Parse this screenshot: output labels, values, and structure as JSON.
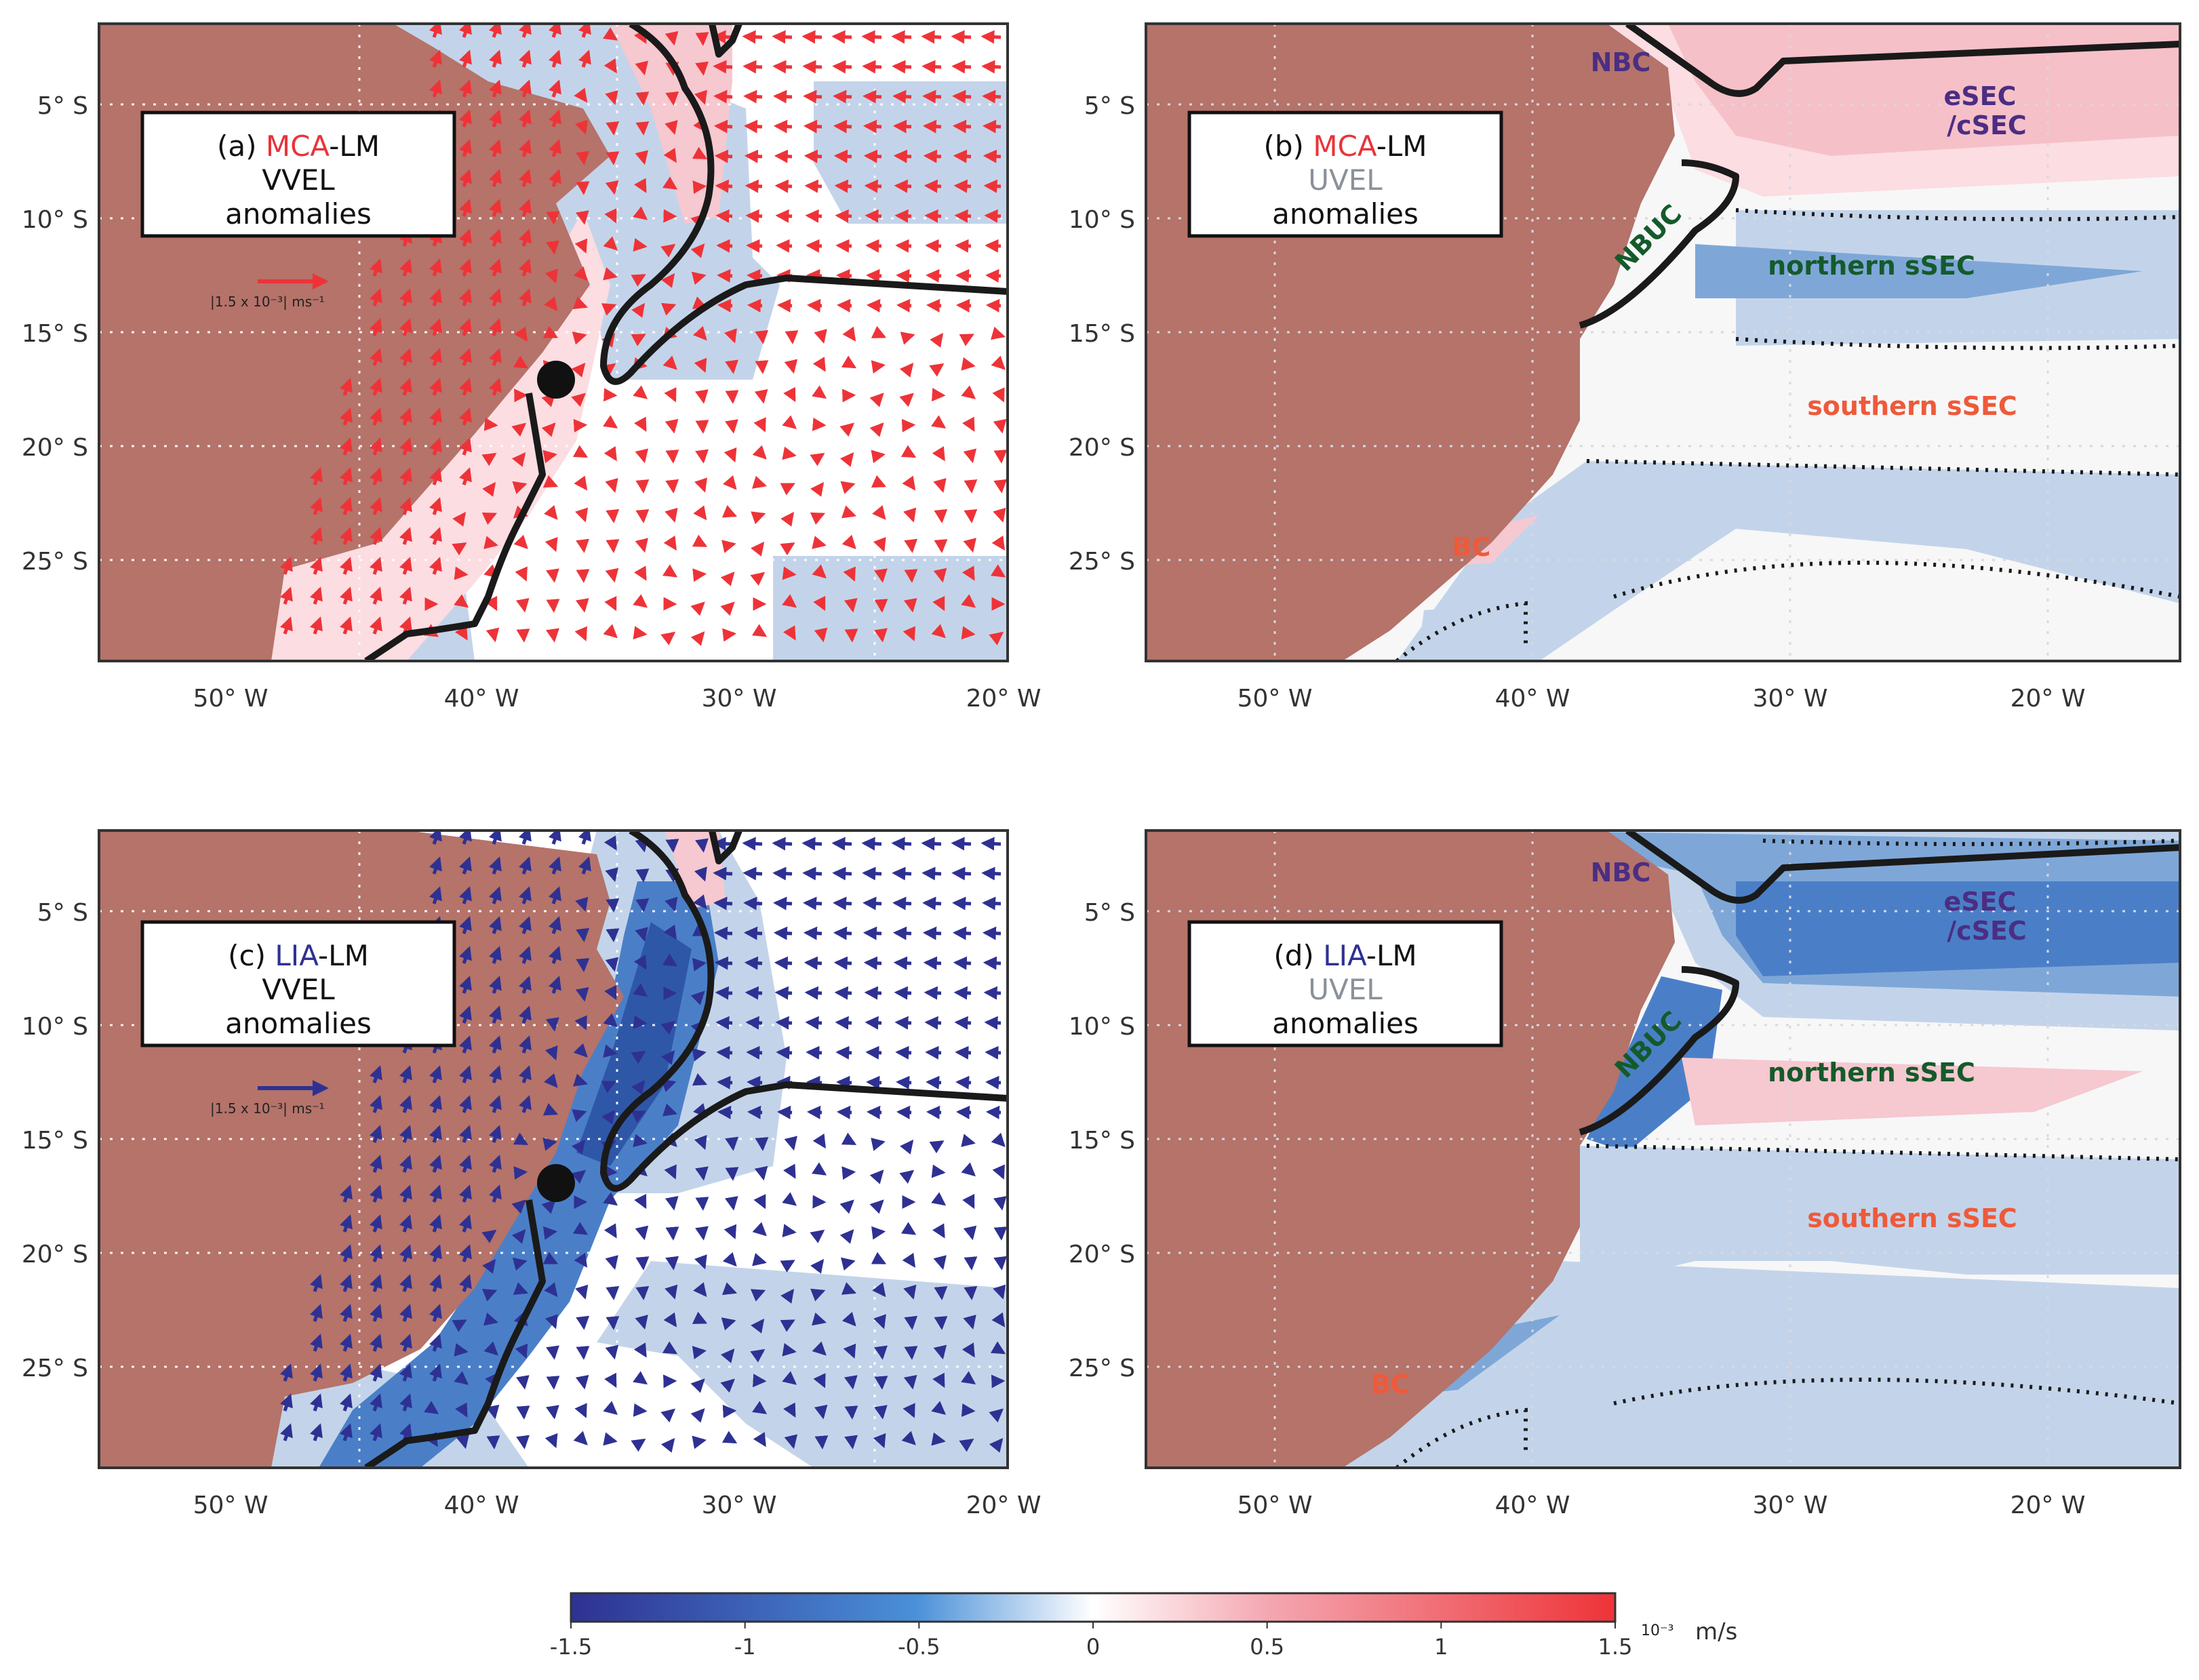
{
  "chart_data": [
    {
      "id": "a",
      "type": "map-quiver",
      "panel_label": "(a)",
      "period": "MCA",
      "period_color": "#e8343a",
      "suffix": "-LM",
      "variable": "VVEL",
      "variable_color": "#333333",
      "anomalies_label": "anomalies",
      "scale_label": "|1.5 x 10⁻³| ms⁻¹",
      "scale_value": 0.0015,
      "arrow_color": "#ee3338",
      "xlim": [
        -55,
        -20
      ],
      "ylim": [
        -29.5,
        -1.5
      ],
      "xticks": [
        "50° W",
        "40° W",
        "30° W",
        "20° W"
      ],
      "yticks": [
        "5° S",
        "10° S",
        "15° S",
        "20° S",
        "25° S"
      ],
      "site": {
        "lon": -37,
        "lat": -17
      }
    },
    {
      "id": "b",
      "type": "map-contour",
      "panel_label": "(b)",
      "period": "MCA",
      "period_color": "#e8343a",
      "suffix": "-LM",
      "variable": "UVEL",
      "variable_color": "#8a9199",
      "anomalies_label": "anomalies",
      "xlim": [
        -55,
        -15
      ],
      "ylim": [
        -29.5,
        -1.5
      ],
      "xticks": [
        "50° W",
        "40° W",
        "30° W",
        "20° W"
      ],
      "yticks": [
        "5° S",
        "10° S",
        "15° S",
        "20° S",
        "25° S"
      ],
      "current_labels": [
        {
          "text": "NBC",
          "color": "#4b2e83"
        },
        {
          "text": "eSEC",
          "color": "#4b2e83"
        },
        {
          "text": "/cSEC",
          "color": "#4b2e83"
        },
        {
          "text": "NBUC",
          "color": "#155a2b"
        },
        {
          "text": "northern sSEC",
          "color": "#155a2b"
        },
        {
          "text": "southern sSEC",
          "color": "#ee5a3a"
        },
        {
          "text": "BC",
          "color": "#ee5a3a"
        }
      ]
    },
    {
      "id": "c",
      "type": "map-quiver",
      "panel_label": "(c)",
      "period": "LIA",
      "period_color": "#2e3192",
      "suffix": "-LM",
      "variable": "VVEL",
      "variable_color": "#333333",
      "anomalies_label": "anomalies",
      "scale_label": "|1.5 x 10⁻³| ms⁻¹",
      "scale_value": 0.0015,
      "arrow_color": "#2e3192",
      "xlim": [
        -55,
        -20
      ],
      "ylim": [
        -29.5,
        -1.5
      ],
      "xticks": [
        "50° W",
        "40° W",
        "30° W",
        "20° W"
      ],
      "yticks": [
        "5° S",
        "10° S",
        "15° S",
        "20° S",
        "25° S"
      ],
      "site": {
        "lon": -37,
        "lat": -17
      }
    },
    {
      "id": "d",
      "type": "map-contour",
      "panel_label": "(d)",
      "period": "LIA",
      "period_color": "#2e3192",
      "suffix": "-LM",
      "variable": "UVEL",
      "variable_color": "#8a9199",
      "anomalies_label": "anomalies",
      "xlim": [
        -55,
        -15
      ],
      "ylim": [
        -29.5,
        -1.5
      ],
      "xticks": [
        "50° W",
        "40° W",
        "30° W",
        "20° W"
      ],
      "yticks": [
        "5° S",
        "10° S",
        "15° S",
        "20° S",
        "25° S"
      ],
      "current_labels": [
        {
          "text": "NBC",
          "color": "#4b2e83"
        },
        {
          "text": "eSEC",
          "color": "#4b2e83"
        },
        {
          "text": "/cSEC",
          "color": "#4b2e83"
        },
        {
          "text": "NBUC",
          "color": "#155a2b"
        },
        {
          "text": "northern sSEC",
          "color": "#155a2b"
        },
        {
          "text": "southern sSEC",
          "color": "#ee5a3a"
        },
        {
          "text": "BC",
          "color": "#ee5a3a"
        }
      ]
    }
  ],
  "colorbar": {
    "min": -1.5,
    "max": 1.5,
    "ticks": [
      "-1.5",
      "-1",
      "-0.5",
      "0",
      "0.5",
      "1",
      "1.5"
    ],
    "multiplier": "10⁻³",
    "unit": "m/s",
    "colors": [
      "#2e3192",
      "#4a90d9",
      "#ffffff",
      "#f4a6b0",
      "#ee3338"
    ]
  },
  "land_color": "#b5736a"
}
